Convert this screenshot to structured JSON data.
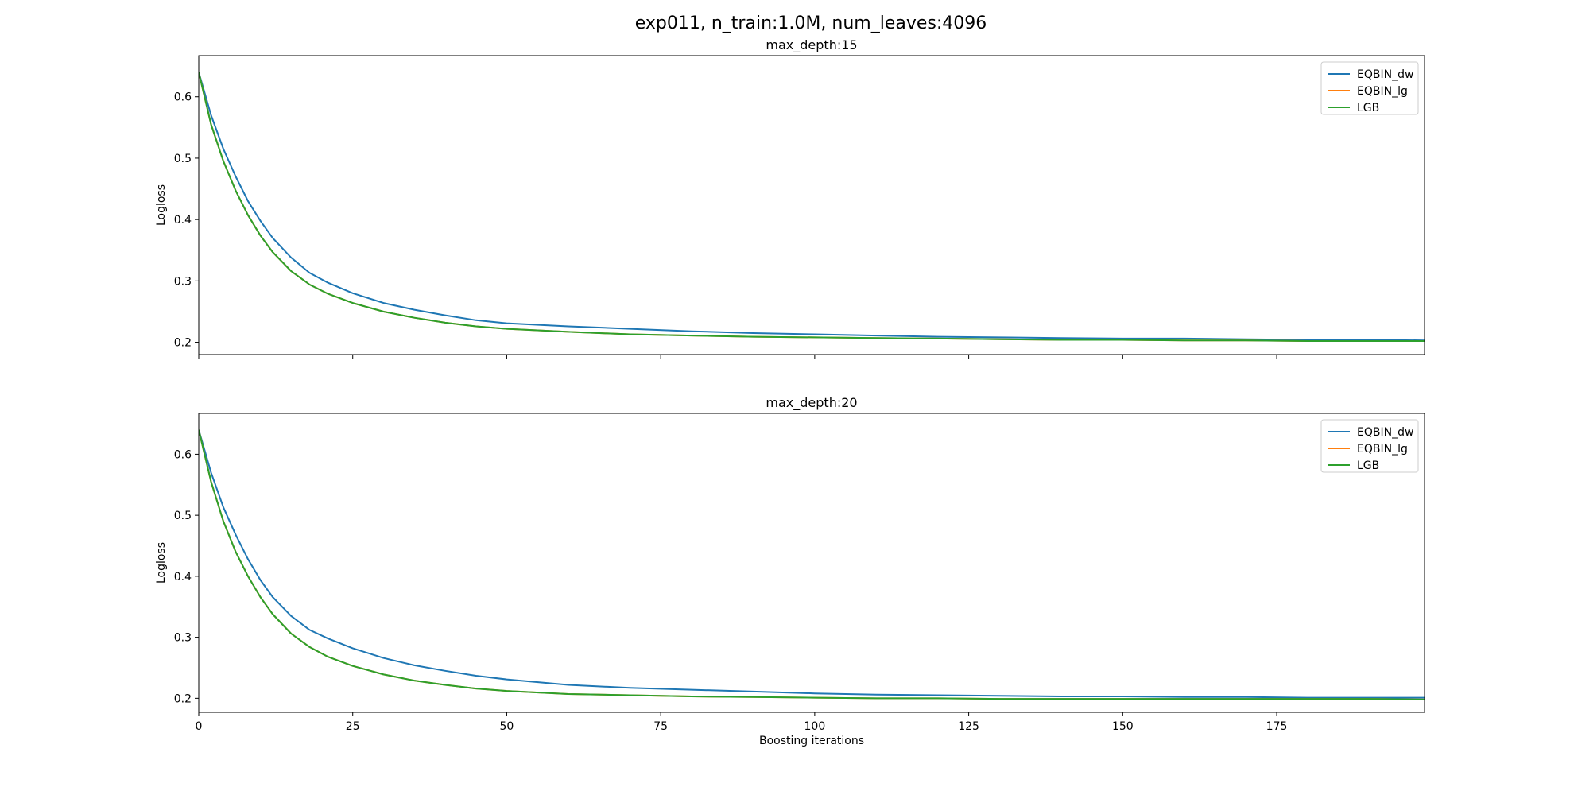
{
  "figure": {
    "suptitle": "exp011, n_train:1.0M, num_leaves:4096"
  },
  "chart_data": [
    {
      "type": "line",
      "title": "max_depth:15",
      "xlabel": "",
      "ylabel": "Logloss",
      "xlim": [
        0,
        199
      ],
      "ylim": [
        0.18,
        0.667
      ],
      "xticks": [
        0,
        25,
        50,
        75,
        100,
        125,
        150,
        175
      ],
      "xtick_labels_visible": false,
      "yticks": [
        0.2,
        0.3,
        0.4,
        0.5,
        0.6
      ],
      "ytick_labels": [
        "0.2",
        "0.3",
        "0.4",
        "0.5",
        "0.6"
      ],
      "legend": {
        "position": "top-right"
      },
      "grid": false,
      "series": [
        {
          "name": "EQBIN_dw",
          "color": "#1f77b4",
          "x": [
            0,
            2,
            4,
            6,
            8,
            10,
            12,
            15,
            18,
            21,
            25,
            30,
            35,
            40,
            45,
            50,
            60,
            70,
            80,
            90,
            100,
            110,
            120,
            130,
            140,
            150,
            160,
            170,
            180,
            190,
            199
          ],
          "y": [
            0.64,
            0.57,
            0.515,
            0.47,
            0.43,
            0.398,
            0.37,
            0.338,
            0.313,
            0.297,
            0.28,
            0.264,
            0.253,
            0.244,
            0.236,
            0.231,
            0.226,
            0.222,
            0.218,
            0.215,
            0.213,
            0.211,
            0.209,
            0.208,
            0.207,
            0.206,
            0.206,
            0.205,
            0.204,
            0.204,
            0.203
          ]
        },
        {
          "name": "EQBIN_lg",
          "color": "#ff7f0e",
          "x": [
            0,
            2,
            4,
            6,
            8,
            10,
            12,
            15,
            18,
            21,
            25,
            30,
            35,
            40,
            45,
            50,
            60,
            70,
            80,
            90,
            100,
            110,
            120,
            130,
            140,
            150,
            160,
            170,
            180,
            190,
            199
          ],
          "y": [
            0.64,
            0.555,
            0.495,
            0.447,
            0.407,
            0.374,
            0.347,
            0.316,
            0.294,
            0.279,
            0.264,
            0.25,
            0.24,
            0.232,
            0.226,
            0.222,
            0.217,
            0.213,
            0.211,
            0.209,
            0.208,
            0.207,
            0.206,
            0.205,
            0.204,
            0.204,
            0.203,
            0.203,
            0.202,
            0.202,
            0.202
          ]
        },
        {
          "name": "LGB",
          "color": "#2ca02c",
          "x": [
            0,
            2,
            4,
            6,
            8,
            10,
            12,
            15,
            18,
            21,
            25,
            30,
            35,
            40,
            45,
            50,
            60,
            70,
            80,
            90,
            100,
            110,
            120,
            130,
            140,
            150,
            160,
            170,
            180,
            190,
            199
          ],
          "y": [
            0.64,
            0.555,
            0.495,
            0.447,
            0.407,
            0.374,
            0.347,
            0.316,
            0.294,
            0.279,
            0.264,
            0.25,
            0.24,
            0.232,
            0.226,
            0.222,
            0.217,
            0.213,
            0.211,
            0.209,
            0.208,
            0.207,
            0.206,
            0.205,
            0.204,
            0.204,
            0.203,
            0.203,
            0.202,
            0.202,
            0.202
          ]
        }
      ]
    },
    {
      "type": "line",
      "title": "max_depth:20",
      "xlabel": "Boosting iterations",
      "ylabel": "Logloss",
      "xlim": [
        0,
        199
      ],
      "ylim": [
        0.177,
        0.667
      ],
      "xticks": [
        0,
        25,
        50,
        75,
        100,
        125,
        150,
        175
      ],
      "xtick_labels": [
        "0",
        "25",
        "50",
        "75",
        "100",
        "125",
        "150",
        "175"
      ],
      "xtick_labels_visible": true,
      "yticks": [
        0.2,
        0.3,
        0.4,
        0.5,
        0.6
      ],
      "ytick_labels": [
        "0.2",
        "0.3",
        "0.4",
        "0.5",
        "0.6"
      ],
      "legend": {
        "position": "top-right"
      },
      "grid": false,
      "series": [
        {
          "name": "EQBIN_dw",
          "color": "#1f77b4",
          "x": [
            0,
            2,
            4,
            6,
            8,
            10,
            12,
            15,
            18,
            21,
            25,
            30,
            35,
            40,
            45,
            50,
            60,
            70,
            80,
            90,
            100,
            110,
            120,
            130,
            140,
            150,
            160,
            170,
            180,
            190,
            199
          ],
          "y": [
            0.64,
            0.57,
            0.513,
            0.468,
            0.428,
            0.394,
            0.366,
            0.335,
            0.312,
            0.298,
            0.282,
            0.266,
            0.254,
            0.245,
            0.237,
            0.231,
            0.222,
            0.217,
            0.214,
            0.211,
            0.208,
            0.206,
            0.205,
            0.204,
            0.203,
            0.203,
            0.202,
            0.202,
            0.201,
            0.201,
            0.201
          ]
        },
        {
          "name": "EQBIN_lg",
          "color": "#ff7f0e",
          "x": [
            0,
            2,
            4,
            6,
            8,
            10,
            12,
            15,
            18,
            21,
            25,
            30,
            35,
            40,
            45,
            50,
            60,
            70,
            80,
            90,
            100,
            110,
            120,
            130,
            140,
            150,
            160,
            170,
            180,
            190,
            199
          ],
          "y": [
            0.64,
            0.555,
            0.49,
            0.44,
            0.4,
            0.366,
            0.338,
            0.306,
            0.284,
            0.268,
            0.253,
            0.239,
            0.229,
            0.222,
            0.216,
            0.212,
            0.207,
            0.205,
            0.203,
            0.202,
            0.201,
            0.2,
            0.2,
            0.199,
            0.199,
            0.199,
            0.199,
            0.199,
            0.199,
            0.199,
            0.198
          ]
        },
        {
          "name": "LGB",
          "color": "#2ca02c",
          "x": [
            0,
            2,
            4,
            6,
            8,
            10,
            12,
            15,
            18,
            21,
            25,
            30,
            35,
            40,
            45,
            50,
            60,
            70,
            80,
            90,
            100,
            110,
            120,
            130,
            140,
            150,
            160,
            170,
            180,
            190,
            199
          ],
          "y": [
            0.64,
            0.555,
            0.49,
            0.44,
            0.4,
            0.366,
            0.338,
            0.306,
            0.284,
            0.268,
            0.253,
            0.239,
            0.229,
            0.222,
            0.216,
            0.212,
            0.207,
            0.205,
            0.203,
            0.202,
            0.201,
            0.2,
            0.2,
            0.199,
            0.199,
            0.199,
            0.199,
            0.199,
            0.199,
            0.199,
            0.198
          ]
        }
      ]
    }
  ]
}
